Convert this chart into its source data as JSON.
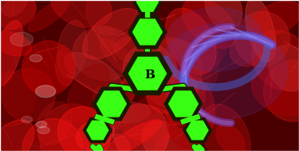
{
  "title": "",
  "bg_color": "#8B0000",
  "molecule_color": "#39FF14",
  "molecule_edge_color": "#1a1a00",
  "molecule_linewidth": 3.5,
  "b_label": "B",
  "b_label_color": "#000000",
  "b_label_fontsize": 11,
  "fig_width": 3.75,
  "fig_height": 1.89,
  "dpi": 100,
  "cell_bg": {
    "red_patches": true,
    "blue_dna": true
  }
}
